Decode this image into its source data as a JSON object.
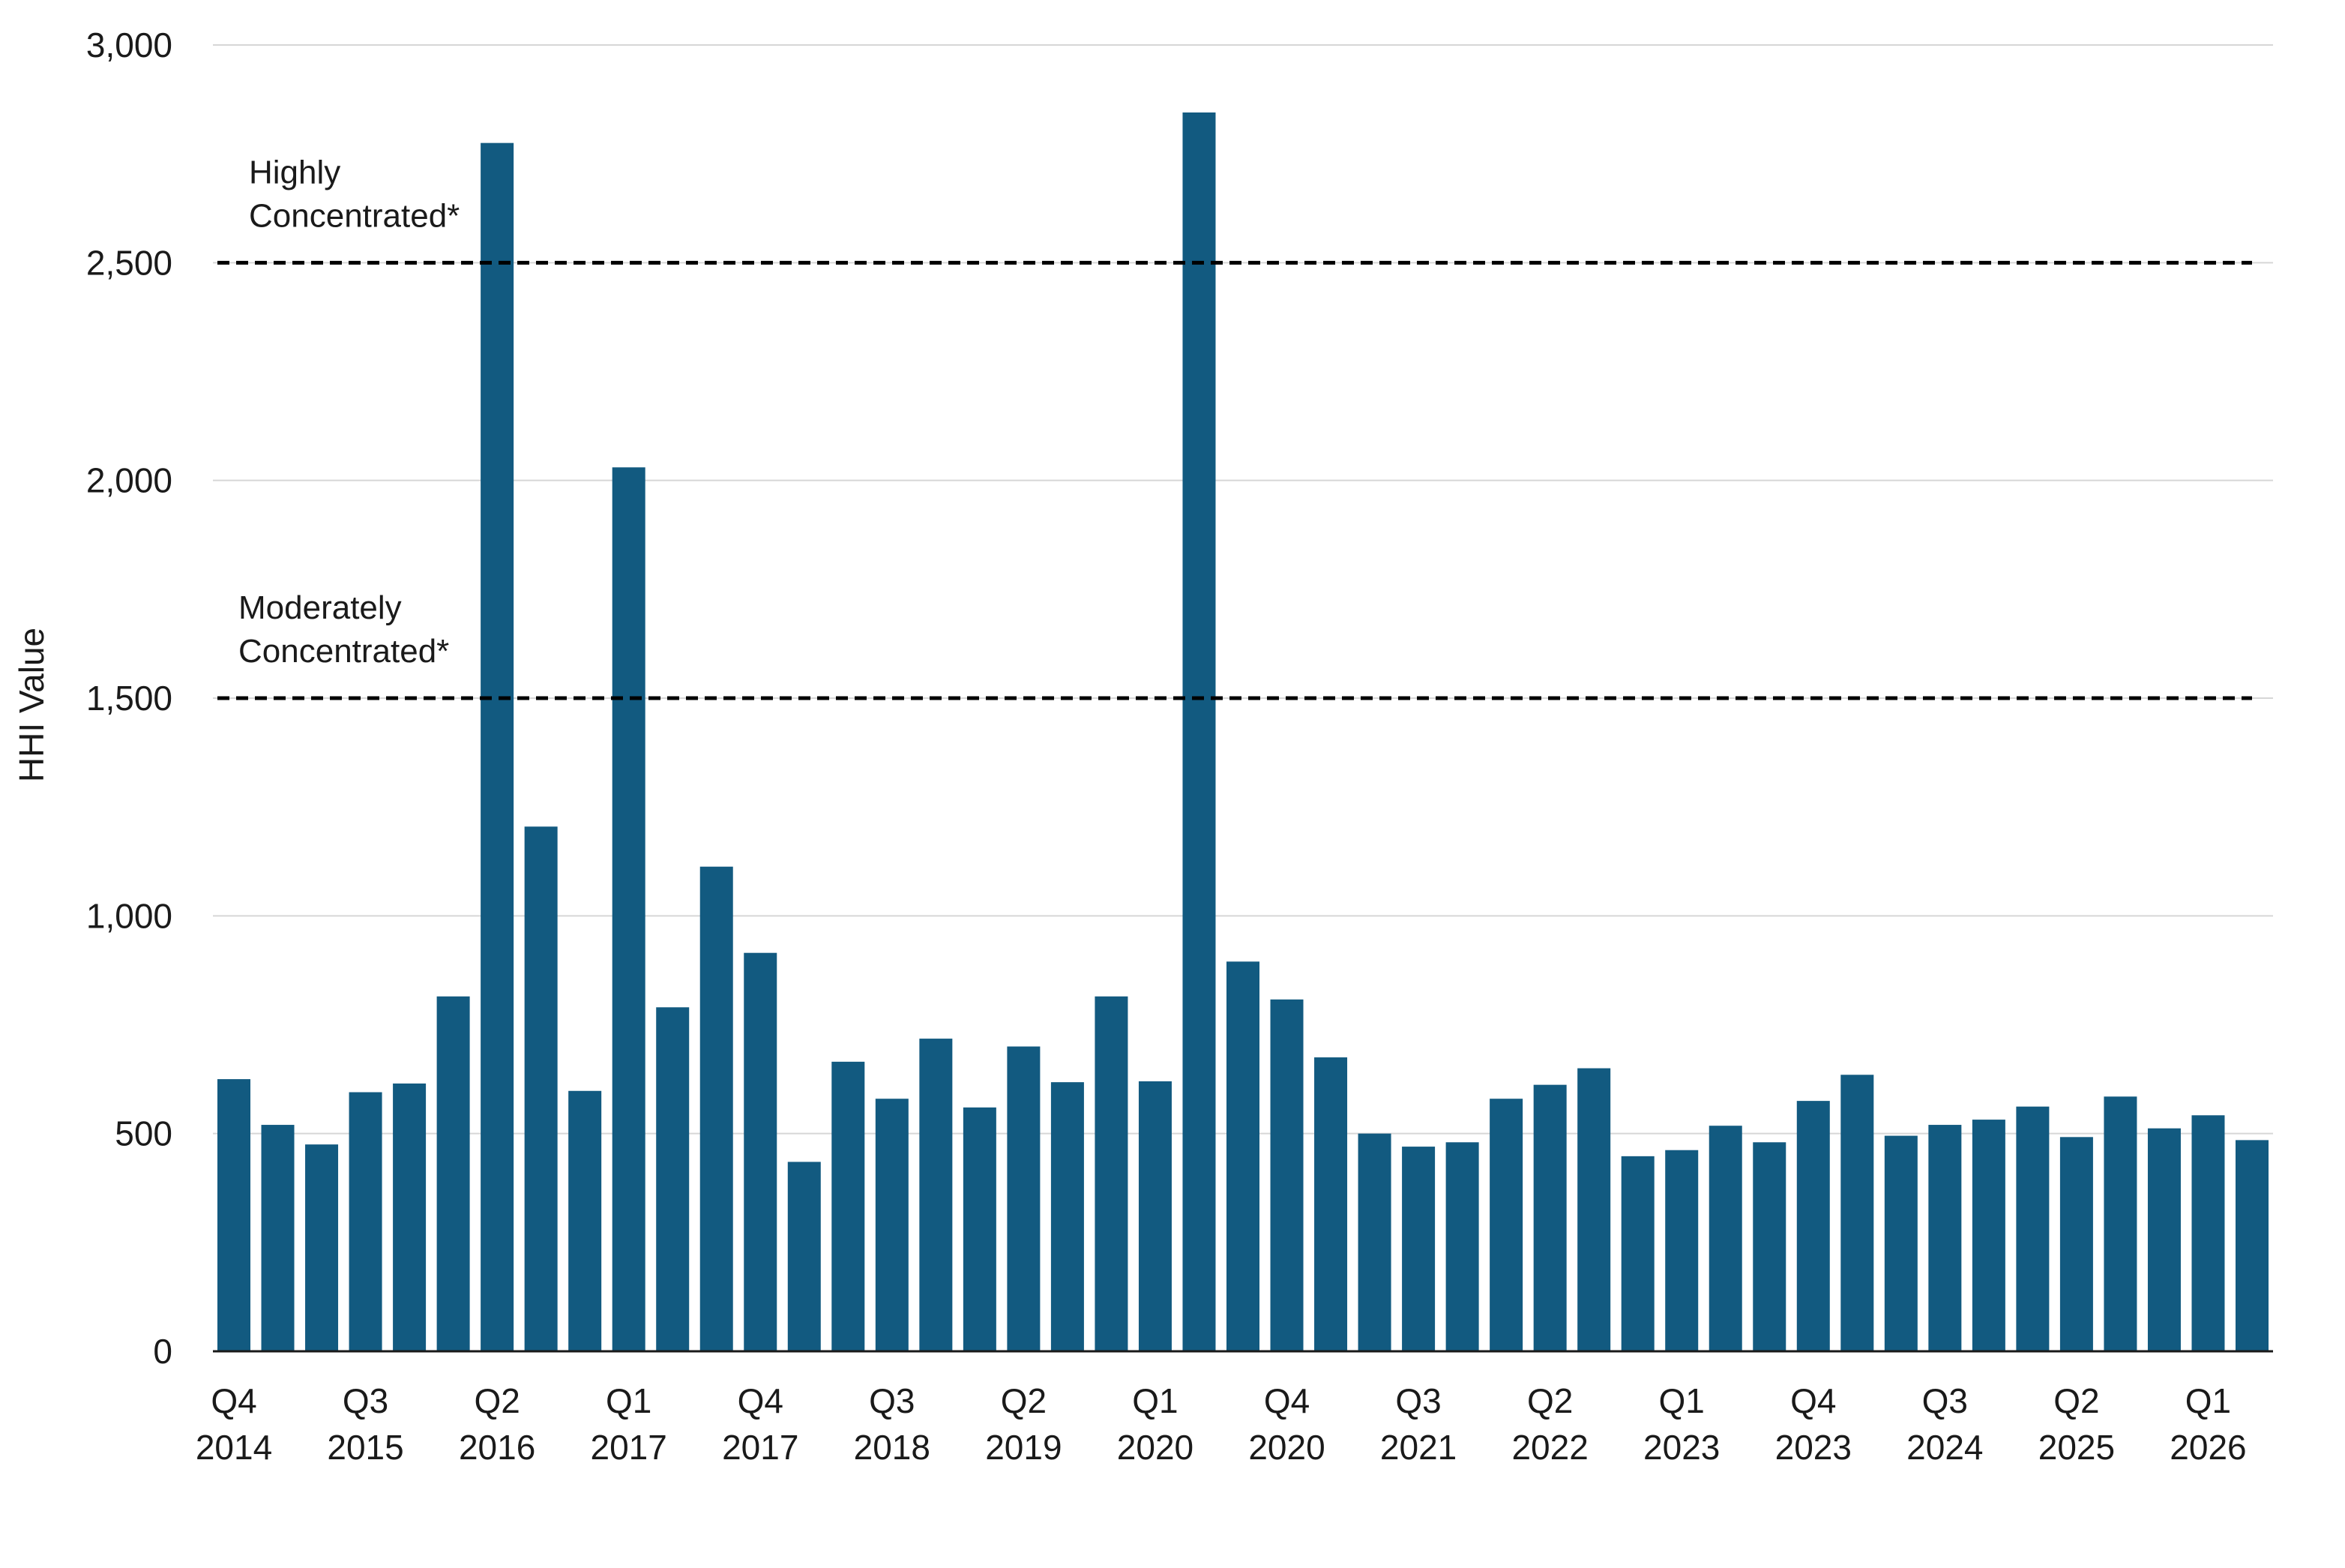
{
  "chart_data": {
    "type": "bar",
    "ylabel": "HHI Value",
    "xlabel": "",
    "ylim": [
      0,
      3000
    ],
    "yticks": [
      "0",
      "500",
      "1,000",
      "1,500",
      "2,000",
      "2,500",
      "3,000"
    ],
    "ytick_values": [
      0,
      500,
      1000,
      1500,
      2000,
      2500,
      3000
    ],
    "grid": true,
    "bar_color": "#125a80",
    "x_tick_labels": [
      {
        "index": 0,
        "quarter": "Q4",
        "year": "2014"
      },
      {
        "index": 3,
        "quarter": "Q3",
        "year": "2015"
      },
      {
        "index": 6,
        "quarter": "Q2",
        "year": "2016"
      },
      {
        "index": 9,
        "quarter": "Q1",
        "year": "2017"
      },
      {
        "index": 12,
        "quarter": "Q4",
        "year": "2017"
      },
      {
        "index": 15,
        "quarter": "Q3",
        "year": "2018"
      },
      {
        "index": 18,
        "quarter": "Q2",
        "year": "2019"
      },
      {
        "index": 21,
        "quarter": "Q1",
        "year": "2020"
      },
      {
        "index": 24,
        "quarter": "Q4",
        "year": "2020"
      },
      {
        "index": 27,
        "quarter": "Q3",
        "year": "2021"
      },
      {
        "index": 30,
        "quarter": "Q2",
        "year": "2022"
      },
      {
        "index": 33,
        "quarter": "Q1",
        "year": "2023"
      },
      {
        "index": 36,
        "quarter": "Q4",
        "year": "2023"
      },
      {
        "index": 39,
        "quarter": "Q3",
        "year": "2024"
      },
      {
        "index": 42,
        "quarter": "Q2",
        "year": "2025"
      },
      {
        "index": 45,
        "quarter": "Q1",
        "year": "2026"
      }
    ],
    "values": [
      625,
      520,
      475,
      595,
      615,
      815,
      2775,
      1205,
      598,
      2030,
      790,
      1113,
      915,
      435,
      665,
      580,
      718,
      560,
      700,
      618,
      815,
      620,
      2845,
      895,
      808,
      675,
      500,
      470,
      480,
      580,
      612,
      650,
      448,
      462,
      518,
      480,
      575,
      635,
      495,
      520,
      532,
      562,
      492,
      585,
      512,
      542,
      485
    ],
    "thresholds": [
      {
        "value": 2500,
        "label_line1": "Highly",
        "label_line2": "Concentrated*"
      },
      {
        "value": 1500,
        "label_line1": "Moderately",
        "label_line2": "Concentrated*"
      }
    ]
  }
}
